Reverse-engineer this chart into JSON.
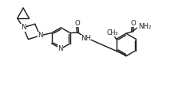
{
  "bg": "#ffffff",
  "lc": "#222222",
  "lw": 1.05,
  "fs": 6.2,
  "figsize": [
    2.38,
    1.11
  ],
  "dpi": 100,
  "xlim": [
    -0.05,
    2.43
  ],
  "ylim": [
    -0.05,
    1.16
  ]
}
